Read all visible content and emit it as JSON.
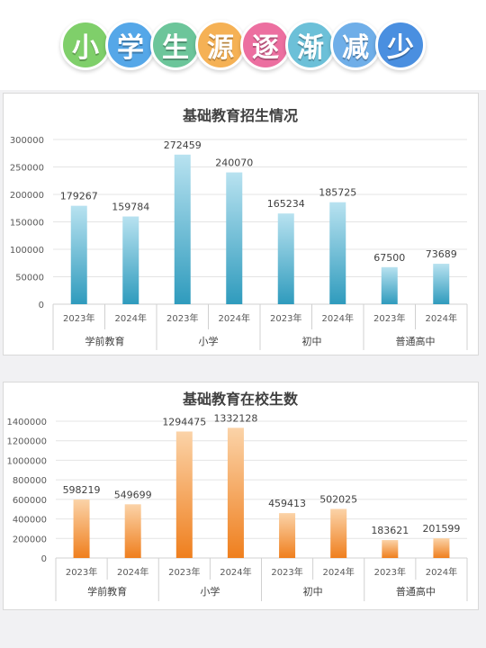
{
  "banner": {
    "chars": [
      "小",
      "学",
      "生",
      "源",
      "逐",
      "渐",
      "减",
      "少"
    ],
    "colors": [
      "#7fcf6a",
      "#55a7e8",
      "#6cc59a",
      "#f5b155",
      "#ec6fa0",
      "#6cc0d8",
      "#6faee8",
      "#4a8fe0"
    ]
  },
  "colors": {
    "enroll_top": "#b8e2f0",
    "enroll_bottom": "#2f9bbd",
    "student_top": "#fbd3a8",
    "student_bottom": "#ef7f1e"
  },
  "chart_data": [
    {
      "type": "bar",
      "title": "基础教育招生情况",
      "groups": [
        "学前教育",
        "小学",
        "初中",
        "普通高中"
      ],
      "categories": [
        "2023年",
        "2024年",
        "2023年",
        "2024年",
        "2023年",
        "2024年",
        "2023年",
        "2024年"
      ],
      "values": [
        179267,
        159784,
        272459,
        240070,
        165234,
        185725,
        67500,
        73689
      ],
      "ylim": [
        0,
        300000
      ],
      "yticks": [
        "0",
        "50000",
        "100000",
        "150000",
        "200000",
        "250000",
        "300000"
      ],
      "grid": true
    },
    {
      "type": "bar",
      "title": "基础教育在校生数",
      "groups": [
        "学前教育",
        "小学",
        "初中",
        "普通高中"
      ],
      "categories": [
        "2023年",
        "2024年",
        "2023年",
        "2024年",
        "2023年",
        "2024年",
        "2023年",
        "2024年"
      ],
      "values": [
        598219,
        549699,
        1294475,
        1332128,
        459413,
        502025,
        183621,
        201599
      ],
      "ylim": [
        0,
        1400000
      ],
      "yticks": [
        "0",
        "200000",
        "400000",
        "600000",
        "800000",
        "1000000",
        "1200000",
        "1400000"
      ],
      "grid": true
    }
  ]
}
